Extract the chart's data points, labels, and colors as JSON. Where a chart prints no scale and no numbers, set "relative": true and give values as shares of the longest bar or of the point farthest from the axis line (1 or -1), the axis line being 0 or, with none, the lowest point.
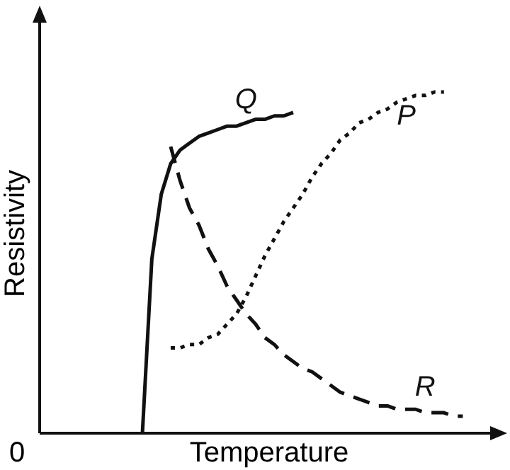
{
  "chart_data": {
    "type": "line",
    "relative": true,
    "xlabel": "Temperature",
    "ylabel": "Resistivity",
    "annotations": [
      "0"
    ],
    "categories": [
      null,
      null,
      null,
      null,
      null,
      null,
      null,
      null,
      null,
      null,
      null,
      null,
      null,
      null,
      null,
      null,
      null,
      null,
      null,
      null,
      null,
      null,
      null,
      null,
      null,
      null,
      null,
      null,
      null,
      null,
      null,
      null,
      null,
      null,
      null,
      null,
      null,
      null,
      null,
      null,
      null,
      null,
      null,
      null,
      null,
      null,
      null
    ],
    "series": [
      {
        "name": "Q",
        "color": "#111111",
        "line_style": "solid",
        "values": [
          null,
          null,
          null,
          null,
          null,
          null,
          null,
          null,
          null,
          null,
          0,
          0.51,
          0.7,
          0.79,
          0.83,
          0.85,
          0.87,
          0.88,
          0.89,
          0.9,
          0.9,
          0.91,
          0.92,
          0.92,
          0.93,
          0.93,
          0.94,
          null,
          null,
          null,
          null,
          null,
          null,
          null,
          null,
          null,
          null,
          null,
          null,
          null,
          null,
          null,
          null,
          null,
          null,
          null,
          null
        ]
      },
      {
        "name": "P",
        "color": "#111111",
        "line_style": "dotted",
        "values": [
          null,
          null,
          null,
          null,
          null,
          null,
          null,
          null,
          null,
          null,
          null,
          null,
          null,
          0.25,
          0.25,
          0.26,
          0.26,
          0.28,
          0.29,
          0.32,
          0.35,
          0.4,
          0.46,
          0.52,
          0.57,
          0.62,
          0.66,
          0.7,
          0.75,
          0.79,
          0.82,
          0.86,
          0.88,
          0.91,
          0.92,
          0.94,
          0.95,
          0.97,
          0.98,
          0.99,
          0.99,
          1,
          1,
          null,
          null,
          null,
          null
        ]
      },
      {
        "name": "R",
        "color": "#111111",
        "line_style": "dashed",
        "values": [
          null,
          null,
          null,
          null,
          null,
          null,
          null,
          null,
          null,
          null,
          null,
          null,
          null,
          0.84,
          0.74,
          0.66,
          0.61,
          0.54,
          0.49,
          0.43,
          0.39,
          0.35,
          0.32,
          0.28,
          0.26,
          0.23,
          0.21,
          0.19,
          0.18,
          0.16,
          0.14,
          0.12,
          0.11,
          0.1,
          0.09,
          0.08,
          0.08,
          0.07,
          0.07,
          0.07,
          0.06,
          0.06,
          0.06,
          0.05,
          0.05,
          null,
          null
        ]
      }
    ]
  }
}
